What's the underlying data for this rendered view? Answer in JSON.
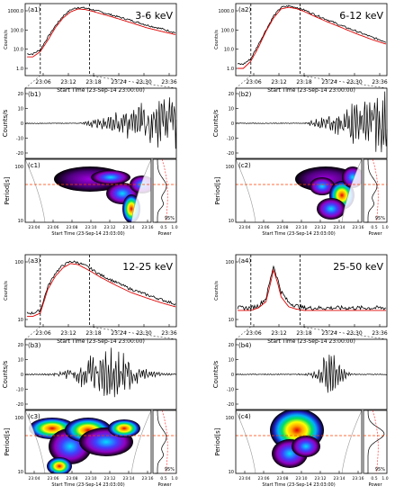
{
  "panels": [
    {
      "group": 1,
      "title_a": "(a1)",
      "title_b": "(b1)",
      "title_c": "(c1)",
      "energy": "3-6 keV",
      "a_ylabel": "Counts/s",
      "a_yticks": [
        "1000.0",
        "100.0",
        "10.0",
        "1.0"
      ],
      "a_xticks": [
        "23:06",
        "23:12",
        "23:18",
        "23:24",
        "23:30",
        "23:36"
      ],
      "a_xlabel": "Start Time (23-Sep-14 23:00:00)",
      "b_ylabel": "Counts/s",
      "b_yticks": [
        "20",
        "10",
        "0",
        "-10",
        "-20"
      ],
      "c_ylabel": "Period[s]",
      "c_yticks": [
        "100",
        "10"
      ],
      "c_xticks": [
        "23:04",
        "23:06",
        "23:08",
        "23:10",
        "23:12",
        "23:14",
        "23:16"
      ],
      "c_xlabel": "Start Time (23-Sep-14 23:03:00)",
      "power_label": "Power",
      "power_ticks": [
        "0.5",
        "1.0"
      ],
      "sig_label": "95%"
    },
    {
      "group": 2,
      "title_a": "(a2)",
      "title_b": "(b2)",
      "title_c": "(c2)",
      "energy": "6-12 keV",
      "a_ylabel": "Counts/s",
      "a_yticks": [
        "1000.0",
        "100.0",
        "10.0",
        "1.0"
      ],
      "a_xticks": [
        "23:06",
        "23:12",
        "23:18",
        "23:24",
        "23:30",
        "23:36"
      ],
      "a_xlabel": "Start Time (23-Sep-14 23:00:00)",
      "b_ylabel": "Counts/s",
      "b_yticks": [
        "20",
        "10",
        "0",
        "-10",
        "-20"
      ],
      "c_ylabel": "Period[s]",
      "c_yticks": [
        "100",
        "10"
      ],
      "c_xticks": [
        "23:04",
        "23:06",
        "23:08",
        "23:10",
        "23:12",
        "23:14",
        "23:16"
      ],
      "c_xlabel": "Start Time (23-Sep-14 23:03:00)",
      "power_label": "Power",
      "power_ticks": [
        "0.5",
        "1.0"
      ],
      "sig_label": "95%"
    },
    {
      "group": 3,
      "title_a": "(a3)",
      "title_b": "(b3)",
      "title_c": "(c3)",
      "energy": "12-25 keV",
      "a_ylabel": "Counts/s",
      "a_yticks": [
        "100",
        "10"
      ],
      "a_xticks": [
        "23:06",
        "23:12",
        "23:18",
        "23:24",
        "23:30",
        "23:36"
      ],
      "a_xlabel": "Start Time (23-Sep-14 23:00:00)",
      "b_ylabel": "Counts/s",
      "b_yticks": [
        "20",
        "10",
        "0",
        "-10",
        "-20"
      ],
      "c_ylabel": "Period[s]",
      "c_yticks": [
        "100",
        "10"
      ],
      "c_xticks": [
        "23:04",
        "23:06",
        "23:08",
        "23:10",
        "23:12",
        "23:14",
        "23:16"
      ],
      "c_xlabel": "Start Time (23-Sep-14 23:03:00)",
      "power_label": "Power",
      "power_ticks": [
        "0.5",
        "1.0"
      ],
      "sig_label": "95%"
    },
    {
      "group": 4,
      "title_a": "(a4)",
      "title_b": "(b4)",
      "title_c": "(c4)",
      "energy": "25-50 keV",
      "a_ylabel": "Counts/s",
      "a_yticks": [
        "100",
        "10"
      ],
      "a_xticks": [
        "23:06",
        "23:12",
        "23:18",
        "23:24",
        "23:30",
        "23:36"
      ],
      "a_xlabel": "Start Time (23-Sep-14 23:00:00)",
      "b_ylabel": "Counts/s",
      "b_yticks": [
        "20",
        "10",
        "0",
        "-10",
        "-20"
      ],
      "c_ylabel": "Period[s]",
      "c_yticks": [
        "100",
        "10"
      ],
      "c_xticks": [
        "23:04",
        "23:06",
        "23:08",
        "23:10",
        "23:12",
        "23:14",
        "23:16"
      ],
      "c_xlabel": "Start Time (23-Sep-14 23:03:00)",
      "power_label": "Power",
      "power_ticks": [
        "0.5",
        "1.0"
      ],
      "sig_label": "95%"
    }
  ],
  "chart_data": [
    {
      "type": "line",
      "title": "3-6 keV",
      "xlabel": "Start Time (23-Sep-14 23:00:00)",
      "ylabel": "Counts/s",
      "yscale": "log",
      "ylim": [
        1,
        1000
      ],
      "x_minutes": [
        2,
        4,
        6,
        8,
        10,
        12,
        14,
        16,
        18,
        20,
        24,
        28,
        32,
        36,
        40
      ],
      "series": [
        {
          "values": [
            8,
            12,
            40,
            120,
            300,
            550,
            700,
            650,
            550,
            450,
            300,
            200,
            130,
            90,
            60
          ]
        },
        {
          "values": [
            6,
            10,
            30,
            100,
            250,
            450,
            600,
            560,
            470,
            380,
            250,
            160,
            100,
            70,
            50
          ]
        }
      ],
      "colors": [
        "#000000",
        "#e00000"
      ],
      "vlines_minutes": [
        4,
        17
      ]
    },
    {
      "type": "line",
      "title": "6-12 keV",
      "xlabel": "Start Time (23-Sep-14 23:00:00)",
      "ylabel": "Counts/s",
      "yscale": "log",
      "ylim": [
        1,
        1000
      ],
      "x_minutes": [
        2,
        4,
        6,
        8,
        10,
        12,
        14,
        16,
        18,
        20,
        24,
        28,
        32,
        36,
        40
      ],
      "series": [
        {
          "values": [
            3,
            5,
            20,
            80,
            300,
            700,
            800,
            700,
            550,
            400,
            220,
            120,
            70,
            40,
            25
          ]
        },
        {
          "values": [
            2,
            4,
            15,
            70,
            250,
            600,
            700,
            620,
            480,
            340,
            180,
            100,
            55,
            32,
            20
          ]
        }
      ],
      "colors": [
        "#000000",
        "#e00000"
      ],
      "vlines_minutes": [
        4,
        17
      ]
    },
    {
      "type": "line",
      "title": "12-25 keV",
      "xlabel": "Start Time (23-Sep-14 23:00:00)",
      "ylabel": "Counts/s",
      "yscale": "log",
      "x_minutes": [
        2,
        4,
        6,
        8,
        10,
        12,
        14,
        16,
        18,
        20,
        24,
        28,
        32,
        36,
        40
      ],
      "series": [
        {
          "values": [
            10,
            12,
            60,
            150,
            250,
            320,
            300,
            240,
            180,
            130,
            80,
            50,
            35,
            25,
            18
          ]
        },
        {
          "values": [
            8,
            10,
            50,
            120,
            210,
            280,
            260,
            200,
            150,
            110,
            65,
            40,
            28,
            20,
            15
          ]
        }
      ],
      "colors": [
        "#000000",
        "#e00000"
      ],
      "vlines_minutes": [
        4,
        17
      ]
    },
    {
      "type": "line",
      "title": "25-50 keV",
      "xlabel": "Start Time (23-Sep-14 23:00:00)",
      "ylabel": "Counts/s",
      "yscale": "log",
      "x_minutes": [
        2,
        4,
        6,
        8,
        9,
        10,
        11,
        12,
        14,
        16,
        18,
        20,
        24,
        28,
        32,
        36,
        40
      ],
      "series": [
        {
          "values": [
            20,
            20,
            22,
            30,
            60,
            120,
            70,
            40,
            25,
            22,
            20,
            20,
            20,
            20,
            20,
            20,
            20
          ]
        },
        {
          "values": [
            18,
            18,
            20,
            26,
            50,
            100,
            60,
            32,
            21,
            19,
            18,
            18,
            18,
            18,
            18,
            18,
            18
          ]
        }
      ],
      "colors": [
        "#000000",
        "#e00000"
      ],
      "vlines_minutes": [
        4,
        17
      ]
    }
  ]
}
